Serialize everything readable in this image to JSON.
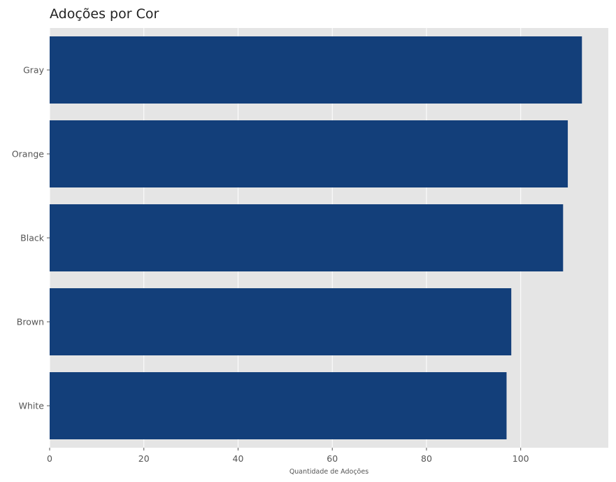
{
  "chart_data": {
    "type": "bar",
    "orientation": "horizontal",
    "title": "Adoções por Cor",
    "xlabel": "Quantidade de Adoções",
    "ylabel": "",
    "categories": [
      "Gray",
      "Orange",
      "Black",
      "Brown",
      "White"
    ],
    "values": [
      113,
      110,
      109,
      98,
      97
    ],
    "xlim": [
      0,
      118.6
    ],
    "xticks": [
      0,
      20,
      40,
      60,
      80,
      100
    ],
    "grid": true,
    "legend": "none",
    "colors": {
      "bar": "#133f7a",
      "plot_background": "#e5e5e5",
      "grid": "#ffffff"
    }
  }
}
